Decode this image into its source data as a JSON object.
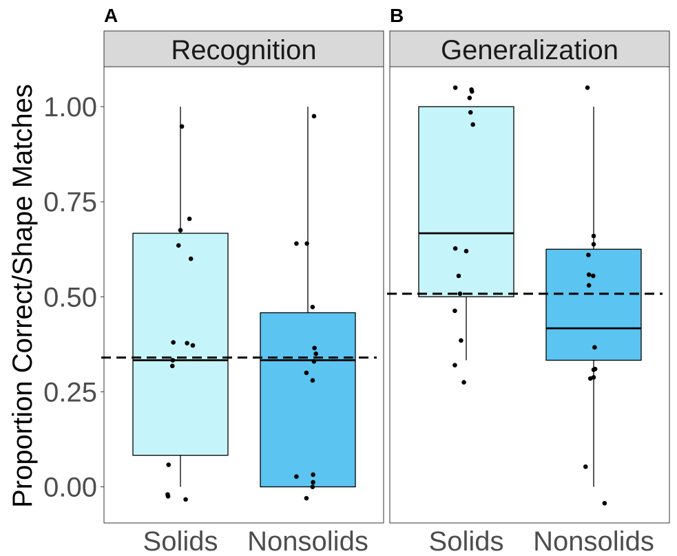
{
  "chart_data": {
    "type": "box",
    "ylabel": "Proportion Correct/Shape Matches",
    "yticks": [
      0.0,
      0.25,
      0.5,
      0.75,
      1.0
    ],
    "ytick_labels": [
      "0.00",
      "0.25",
      "0.50",
      "0.75",
      "1.00"
    ],
    "ylim": [
      -0.095,
      1.105
    ],
    "categories": [
      "Solids",
      "Nonsolids"
    ],
    "fills": {
      "Solids": "#c5f5fa",
      "Nonsolids": "#5bc4f0"
    },
    "panels": [
      {
        "tag": "A",
        "title": "Recognition",
        "reference_line": 0.34,
        "boxes": [
          {
            "category": "Solids",
            "q1": 0.083,
            "median": 0.333,
            "q3": 0.667,
            "whisker_low": 0.0,
            "whisker_high": 1.0,
            "points": [
              [
                -0.25,
                0.058
              ],
              [
                -0.27,
                -0.02
              ],
              [
                -0.26,
                -0.025
              ],
              [
                0.11,
                -0.033
              ],
              [
                -0.17,
                0.318
              ],
              [
                -0.16,
                0.333
              ],
              [
                -0.15,
                0.38
              ],
              [
                0.14,
                0.378
              ],
              [
                0.26,
                0.372
              ],
              [
                -0.04,
                0.635
              ],
              [
                0.0,
                0.675
              ],
              [
                0.19,
                0.705
              ],
              [
                0.22,
                0.6
              ],
              [
                0.03,
                0.948
              ]
            ]
          },
          {
            "category": "Nonsolids",
            "q1": 0.0,
            "median": 0.333,
            "q3": 0.458,
            "whisker_low": 0.0,
            "whisker_high": 1.0,
            "points": [
              [
                -0.24,
                0.027
              ],
              [
                -0.03,
                -0.03
              ],
              [
                0.11,
                0.032
              ],
              [
                0.11,
                0.012
              ],
              [
                0.1,
                0.0
              ],
              [
                -0.03,
                0.3
              ],
              [
                0.1,
                0.28
              ],
              [
                0.13,
                0.33
              ],
              [
                0.17,
                0.35
              ],
              [
                0.14,
                0.365
              ],
              [
                0.1,
                0.473
              ],
              [
                -0.24,
                0.64
              ],
              [
                -0.02,
                0.64
              ],
              [
                0.13,
                0.975
              ]
            ]
          }
        ]
      },
      {
        "tag": "B",
        "title": "Generalization",
        "reference_line": 0.508,
        "boxes": [
          {
            "category": "Solids",
            "q1": 0.5,
            "median": 0.667,
            "q3": 1.0,
            "whisker_low": 0.333,
            "whisker_high": 1.0,
            "points": [
              [
                -0.24,
                0.32
              ],
              [
                -0.05,
                0.275
              ],
              [
                -0.11,
                0.385
              ],
              [
                -0.24,
                0.463
              ],
              [
                -0.16,
                0.555
              ],
              [
                -0.23,
                0.627
              ],
              [
                0.0,
                0.62
              ],
              [
                -0.13,
                0.508
              ],
              [
                -0.23,
                1.05
              ],
              [
                0.11,
                1.045
              ],
              [
                0.12,
                1.04
              ],
              [
                0.07,
                1.023
              ],
              [
                0.09,
                0.985
              ],
              [
                0.14,
                0.953
              ]
            ]
          },
          {
            "category": "Nonsolids",
            "q1": 0.333,
            "median": 0.417,
            "q3": 0.625,
            "whisker_low": 0.0,
            "whisker_high": 1.0,
            "points": [
              [
                -0.17,
                0.053
              ],
              [
                0.0,
                0.288
              ],
              [
                0.03,
                0.31
              ],
              [
                0.0,
                0.308
              ],
              [
                -0.07,
                0.285
              ],
              [
                0.02,
                0.367
              ],
              [
                -0.11,
                0.61
              ],
              [
                -0.1,
                0.558
              ],
              [
                -0.1,
                0.53
              ],
              [
                -0.01,
                0.555
              ],
              [
                0.0,
                0.638
              ],
              [
                0.0,
                0.66
              ],
              [
                -0.13,
                1.05
              ],
              [
                0.23,
                -0.043
              ]
            ]
          }
        ]
      }
    ]
  }
}
